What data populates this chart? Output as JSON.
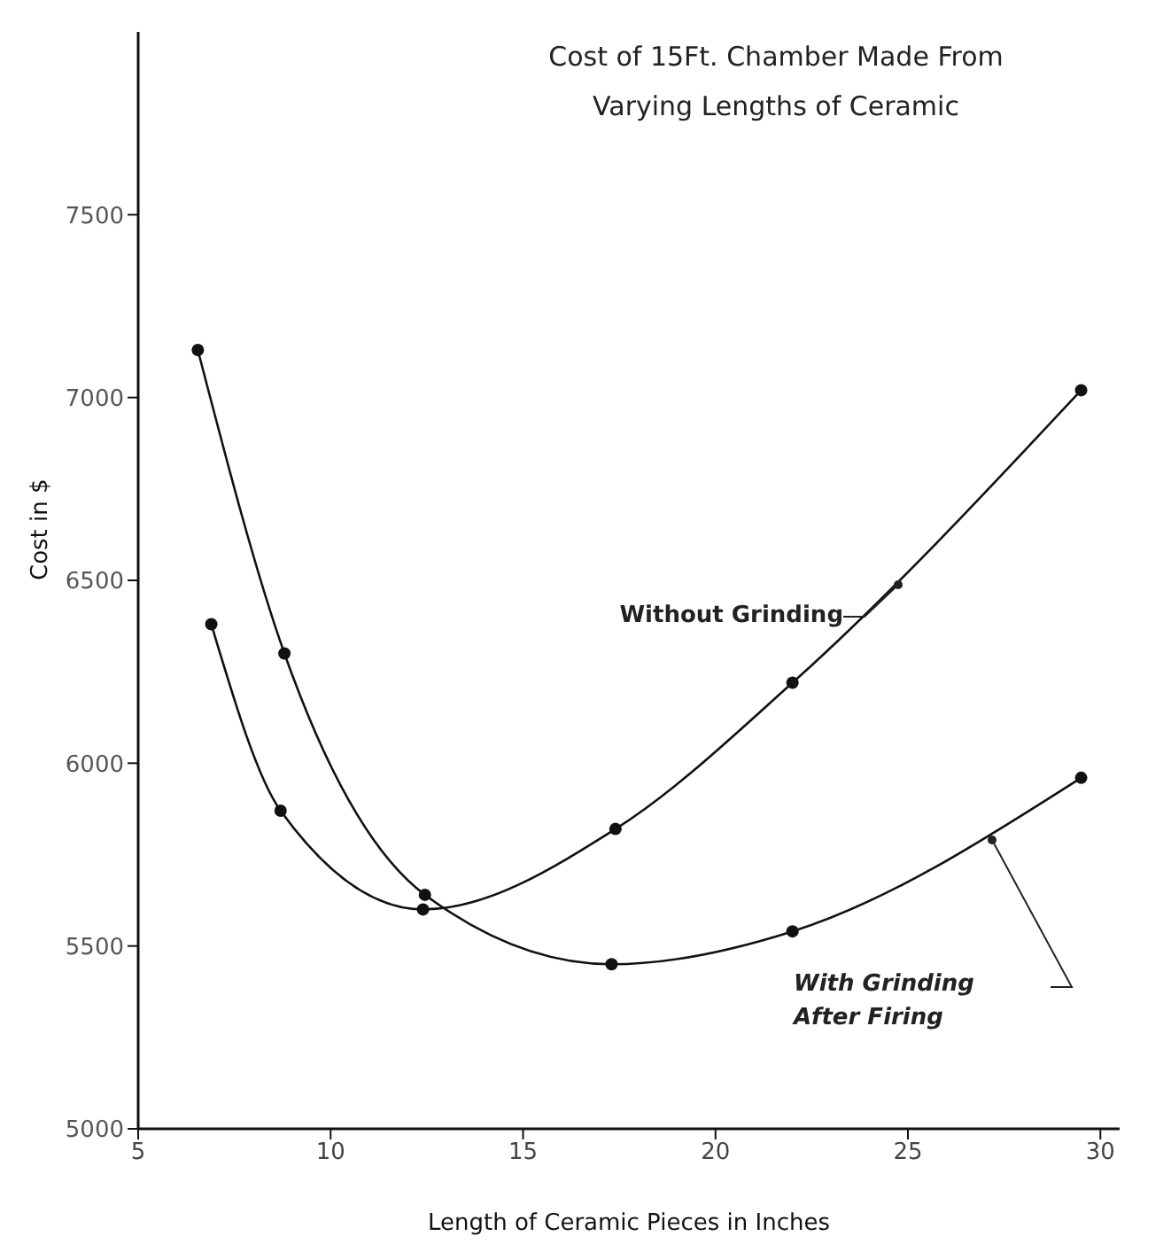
{
  "chart_data": {
    "type": "line",
    "title": "Cost of 15Ft. Chamber Made From Varying Lengths of Ceramic",
    "xlabel": "Length of Ceramic Pieces in Inches",
    "ylabel": "Cost in $",
    "xlim": [
      5,
      30.5
    ],
    "xticks": [
      5,
      10,
      15,
      20,
      25,
      30
    ],
    "ylim": [
      5000,
      8000
    ],
    "yticks": [
      5000,
      5500,
      6000,
      6500,
      7000,
      7500
    ],
    "grid": false,
    "marker": "circle",
    "line_style": "solid",
    "series": [
      {
        "name": "Without Grinding",
        "color": "#111111",
        "x": [
          6.9,
          8.7,
          12.4,
          17.4,
          22,
          29.5
        ],
        "values": [
          6380,
          5870,
          5600,
          5820,
          6220,
          7020
        ]
      },
      {
        "name": "With Grinding After Firing",
        "color": "#111111",
        "x": [
          6.55,
          8.8,
          12.45,
          17.3,
          22,
          29.5
        ],
        "values": [
          7130,
          6300,
          5640,
          5450,
          5540,
          5960
        ]
      }
    ]
  }
}
